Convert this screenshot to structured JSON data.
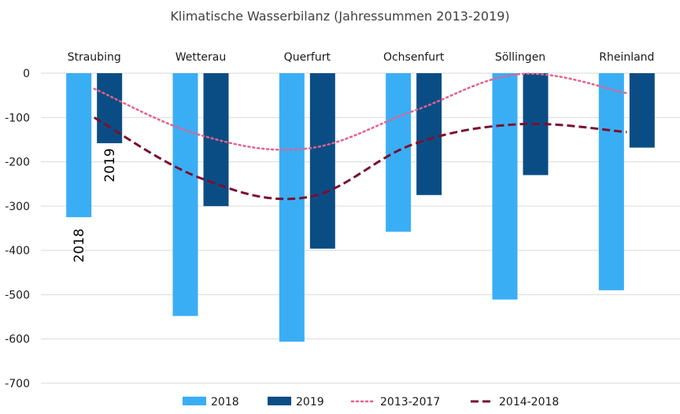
{
  "chart_data": {
    "type": "bar",
    "title": "Klimatische Wasserbilanz (Jahressummen 2013-2019)",
    "xlabel": "",
    "ylabel": "",
    "categories": [
      "Straubing",
      "Wetterau",
      "Querfurt",
      "Ochsenfurt",
      "Söllingen",
      "Rheinland"
    ],
    "ylim": [
      -700,
      0
    ],
    "yticks": [
      0,
      -100,
      -200,
      -300,
      -400,
      -500,
      -600,
      -700
    ],
    "ytick_labels": [
      "0",
      "-100",
      "-200",
      "-300",
      "-400",
      "-500",
      "-600",
      "-700"
    ],
    "grid": true,
    "legend_position": "bottom",
    "series": [
      {
        "name": "2018",
        "kind": "bar",
        "color": "#3aaef5",
        "values": [
          -325,
          -548,
          -606,
          -358,
          -511,
          -490
        ]
      },
      {
        "name": "2019",
        "kind": "bar",
        "color": "#0a4d85",
        "values": [
          -158,
          -300,
          -396,
          -275,
          -230,
          -168
        ]
      },
      {
        "name": "2013-2017",
        "kind": "line",
        "style": "dotted",
        "color": "#e8608a",
        "values": [
          -35,
          -140,
          -170,
          -85,
          -2,
          -45
        ]
      },
      {
        "name": "2014-2018",
        "kind": "line",
        "style": "dashed",
        "color": "#7a1030",
        "values": [
          -100,
          -237,
          -280,
          -160,
          -115,
          -133
        ]
      }
    ],
    "annotations": [
      {
        "text": "2018",
        "category": "Straubing",
        "series": "2018"
      },
      {
        "text": "2019",
        "category": "Straubing",
        "series": "2019"
      }
    ]
  }
}
